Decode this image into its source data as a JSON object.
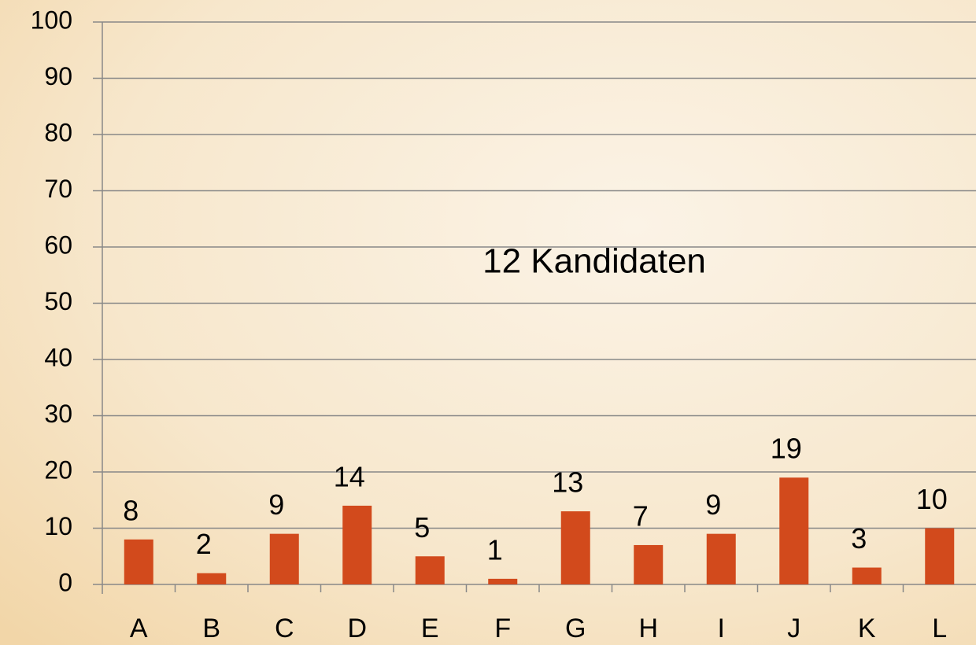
{
  "chart_data": {
    "type": "bar",
    "title": "12 Kandidaten",
    "categories": [
      "A",
      "B",
      "C",
      "D",
      "E",
      "F",
      "G",
      "H",
      "I",
      "J",
      "K",
      "L"
    ],
    "values": [
      8,
      2,
      9,
      14,
      5,
      1,
      13,
      7,
      9,
      19,
      3,
      10
    ],
    "color": "#d24a1c",
    "ylim": [
      0,
      100
    ],
    "yticks": [
      0,
      10,
      20,
      30,
      40,
      50,
      60,
      70,
      80,
      90,
      100
    ],
    "grid": true
  }
}
